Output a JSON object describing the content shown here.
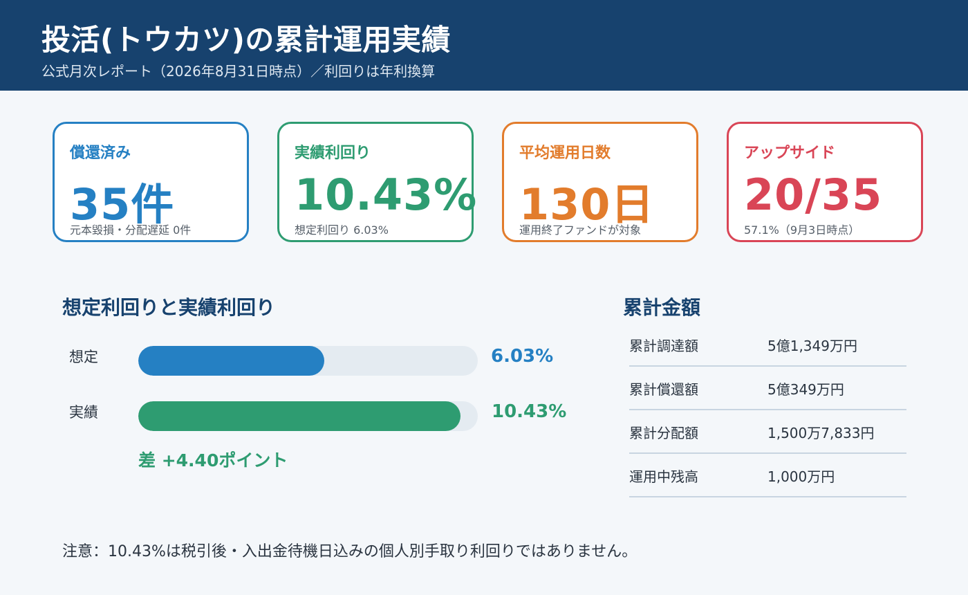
{
  "header": {
    "title": "投活(トウカツ)の累計運用実績",
    "subtitle": "公式月次レポート（2026年8月31日時点）／利回りは年利換算",
    "bg_color": "#17426e"
  },
  "cards": [
    {
      "label": "償還済み",
      "value": "35件",
      "note": "元本毀損・分配遅延 0件",
      "color": "#2580c3"
    },
    {
      "label": "実績利回り",
      "value": "10.43%",
      "note": "想定利回り 6.03%",
      "color": "#2e9c71"
    },
    {
      "label": "平均運用日数",
      "value": "130日",
      "note": "運用終了ファンドが対象",
      "color": "#e27c2c"
    },
    {
      "label": "アップサイド",
      "value": "20/35",
      "note": "57.1%（9月3日時点）",
      "color": "#d94556"
    }
  ],
  "yield_section": {
    "title": "想定利回りと実績利回り",
    "bars": [
      {
        "label": "想定",
        "value_text": "6.03%",
        "value": 6.03,
        "color": "#2580c3"
      },
      {
        "label": "実績",
        "value_text": "10.43%",
        "value": 10.43,
        "color": "#2e9c71"
      }
    ],
    "scale_max": 11,
    "diff": "差 +4.40ポイント"
  },
  "amount_section": {
    "title": "累計金額",
    "rows": [
      {
        "label": "累計調達額",
        "value": "5億1,349万円"
      },
      {
        "label": "累計償還額",
        "value": "5億349万円"
      },
      {
        "label": "累計分配額",
        "value": "1,500万7,833円"
      },
      {
        "label": "運用中残高",
        "value": "1,000万円"
      }
    ]
  },
  "footnote": "注意：10.43%は税引後・入出金待機日込みの個人別手取り利回りではありません。"
}
